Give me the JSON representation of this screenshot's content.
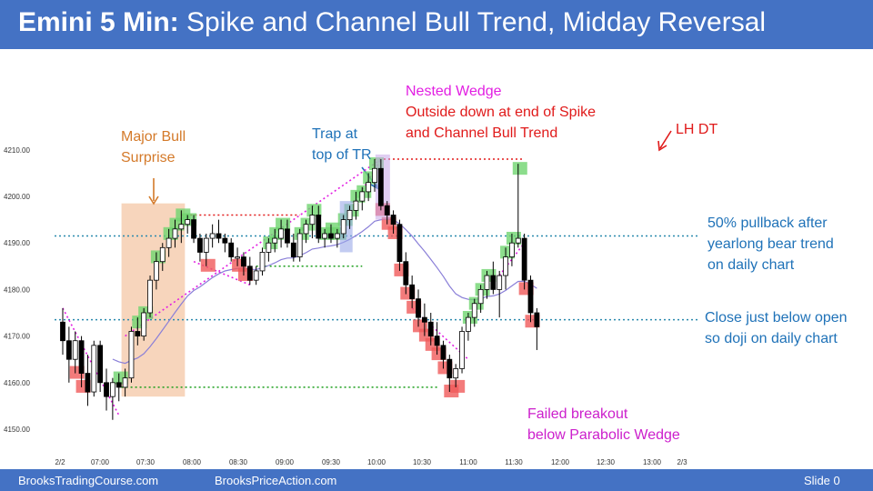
{
  "title": {
    "bold": "Emini 5 Min:",
    "rest": " Spike and Channel Bull Trend, Midday Reversal"
  },
  "footer": {
    "left": "BrooksTradingCourse.com",
    "middle": "BrooksPriceAction.com",
    "right": "Slide 0"
  },
  "colors": {
    "band": "#4472c4",
    "bull_bar": "#ffffff",
    "bear_bar": "#000000",
    "green_box": "#6fd46f",
    "red_box": "#f05a5a",
    "surprise_zone": "#f4c7a5",
    "ema": "#8a7fd8",
    "wedge": "#e21ee2",
    "support": "#1a9e1a",
    "resistance": "#e21a1a",
    "key_level": "#2a8aae"
  },
  "annotations": {
    "major_bull": "Major Bull\nSurprise",
    "trap": "Trap at\ntop of TR",
    "nested_wedge": "Nested Wedge",
    "outside_down": "Outside down at end of Spike\nand Channel Bull Trend",
    "lh_dt": "LH DT",
    "pullback": "50% pullback after\nyearlong bear trend\non daily chart",
    "close_open": "Close just below open\nso doji on daily chart",
    "failed_breakout": "Failed breakout\nbelow Parabolic Wedge"
  },
  "chart_data": {
    "type": "candlestick",
    "title": "",
    "x_ticks": [
      "2/2",
      "07:00",
      "07:30",
      "08:00",
      "08:30",
      "09:00",
      "09:30",
      "10:00",
      "10:30",
      "11:00",
      "11:30",
      "12:00",
      "12:30",
      "13:00",
      "2/3"
    ],
    "y_ticks": [
      "4150.00",
      "4160.00",
      "4170.00",
      "4180.00",
      "4190.00",
      "4200.00",
      "4210.00"
    ],
    "ylim": [
      4148,
      4214
    ],
    "bar_minutes": 5,
    "ohlc": [
      [
        4173,
        4176,
        4166,
        4169
      ],
      [
        4169,
        4172,
        4160,
        4165
      ],
      [
        4165,
        4171,
        4162,
        4169
      ],
      [
        4169,
        4170,
        4159,
        4162
      ],
      [
        4162,
        4166,
        4155,
        4158
      ],
      [
        4158,
        4169,
        4157,
        4168
      ],
      [
        4168,
        4169,
        4158,
        4160
      ],
      [
        4160,
        4163,
        4154,
        4157
      ],
      [
        4157,
        4161,
        4152,
        4160
      ],
      [
        4160,
        4162,
        4156,
        4159
      ],
      [
        4159,
        4163,
        4157,
        4161
      ],
      [
        4161,
        4172,
        4160,
        4171
      ],
      [
        4171,
        4174,
        4168,
        4170
      ],
      [
        4170,
        4176,
        4169,
        4175
      ],
      [
        4175,
        4183,
        4174,
        4182
      ],
      [
        4182,
        4188,
        4180,
        4186
      ],
      [
        4186,
        4190,
        4184,
        4189
      ],
      [
        4189,
        4193,
        4187,
        4191
      ],
      [
        4191,
        4195,
        4189,
        4193
      ],
      [
        4193,
        4197,
        4190,
        4194
      ],
      [
        4194,
        4196,
        4192,
        4195
      ],
      [
        4195,
        4196,
        4190,
        4191
      ],
      [
        4191,
        4192,
        4186,
        4188
      ],
      [
        4188,
        4192,
        4185,
        4191
      ],
      [
        4191,
        4194,
        4189,
        4192
      ],
      [
        4192,
        4195,
        4190,
        4191
      ],
      [
        4191,
        4192,
        4188,
        4190
      ],
      [
        4190,
        4191,
        4186,
        4187
      ],
      [
        4187,
        4189,
        4185,
        4187
      ],
      [
        4187,
        4188,
        4183,
        4185
      ],
      [
        4185,
        4187,
        4181,
        4182
      ],
      [
        4182,
        4185,
        4181,
        4184
      ],
      [
        4184,
        4189,
        4183,
        4188
      ],
      [
        4188,
        4191,
        4186,
        4190
      ],
      [
        4190,
        4193,
        4188,
        4191
      ],
      [
        4191,
        4195,
        4189,
        4193
      ],
      [
        4193,
        4195,
        4189,
        4190
      ],
      [
        4190,
        4192,
        4186,
        4187
      ],
      [
        4187,
        4193,
        4186,
        4192
      ],
      [
        4192,
        4195,
        4190,
        4194
      ],
      [
        4194,
        4198,
        4191,
        4196
      ],
      [
        4196,
        4198,
        4190,
        4191
      ],
      [
        4191,
        4193,
        4189,
        4192
      ],
      [
        4192,
        4194,
        4190,
        4191
      ],
      [
        4191,
        4193,
        4189,
        4192
      ],
      [
        4192,
        4196,
        4191,
        4195
      ],
      [
        4195,
        4198,
        4193,
        4197
      ],
      [
        4197,
        4201,
        4195,
        4199
      ],
      [
        4199,
        4202,
        4197,
        4201
      ],
      [
        4201,
        4205,
        4199,
        4203
      ],
      [
        4203,
        4208,
        4201,
        4206
      ],
      [
        4206,
        4208,
        4197,
        4198
      ],
      [
        4198,
        4199,
        4194,
        4196
      ],
      [
        4196,
        4197,
        4192,
        4194
      ],
      [
        4194,
        4195,
        4184,
        4186
      ],
      [
        4186,
        4188,
        4179,
        4181
      ],
      [
        4181,
        4183,
        4176,
        4178
      ],
      [
        4178,
        4180,
        4172,
        4174
      ],
      [
        4174,
        4177,
        4170,
        4173
      ],
      [
        4173,
        4175,
        4168,
        4170
      ],
      [
        4170,
        4173,
        4166,
        4168
      ],
      [
        4168,
        4169,
        4163,
        4165
      ],
      [
        4165,
        4166,
        4158,
        4161
      ],
      [
        4161,
        4164,
        4159,
        4163
      ],
      [
        4163,
        4172,
        4162,
        4171
      ],
      [
        4171,
        4175,
        4169,
        4174
      ],
      [
        4174,
        4178,
        4172,
        4177
      ],
      [
        4177,
        4181,
        4175,
        4180
      ],
      [
        4180,
        4184,
        4178,
        4183
      ],
      [
        4183,
        4186,
        4179,
        4180
      ],
      [
        4180,
        4184,
        4174,
        4183
      ],
      [
        4183,
        4189,
        4180,
        4187
      ],
      [
        4187,
        4192,
        4185,
        4190
      ],
      [
        4190,
        4207,
        4189,
        4191
      ],
      [
        4191,
        4192,
        4180,
        4182
      ],
      [
        4182,
        4183,
        4173,
        4175
      ],
      [
        4175,
        4176,
        4167,
        4172
      ]
    ],
    "levels": [
      {
        "name": "open",
        "value": 4173.5,
        "style": "dotted",
        "color": "key_level"
      },
      {
        "name": "50pct",
        "value": 4191.5,
        "style": "dotted",
        "color": "key_level"
      },
      {
        "name": "low",
        "value": 4159,
        "style": "dotted",
        "color": "support"
      },
      {
        "name": "high",
        "value": 4208,
        "style": "dotted",
        "color": "resistance"
      }
    ],
    "grid": false,
    "legend": "none"
  }
}
